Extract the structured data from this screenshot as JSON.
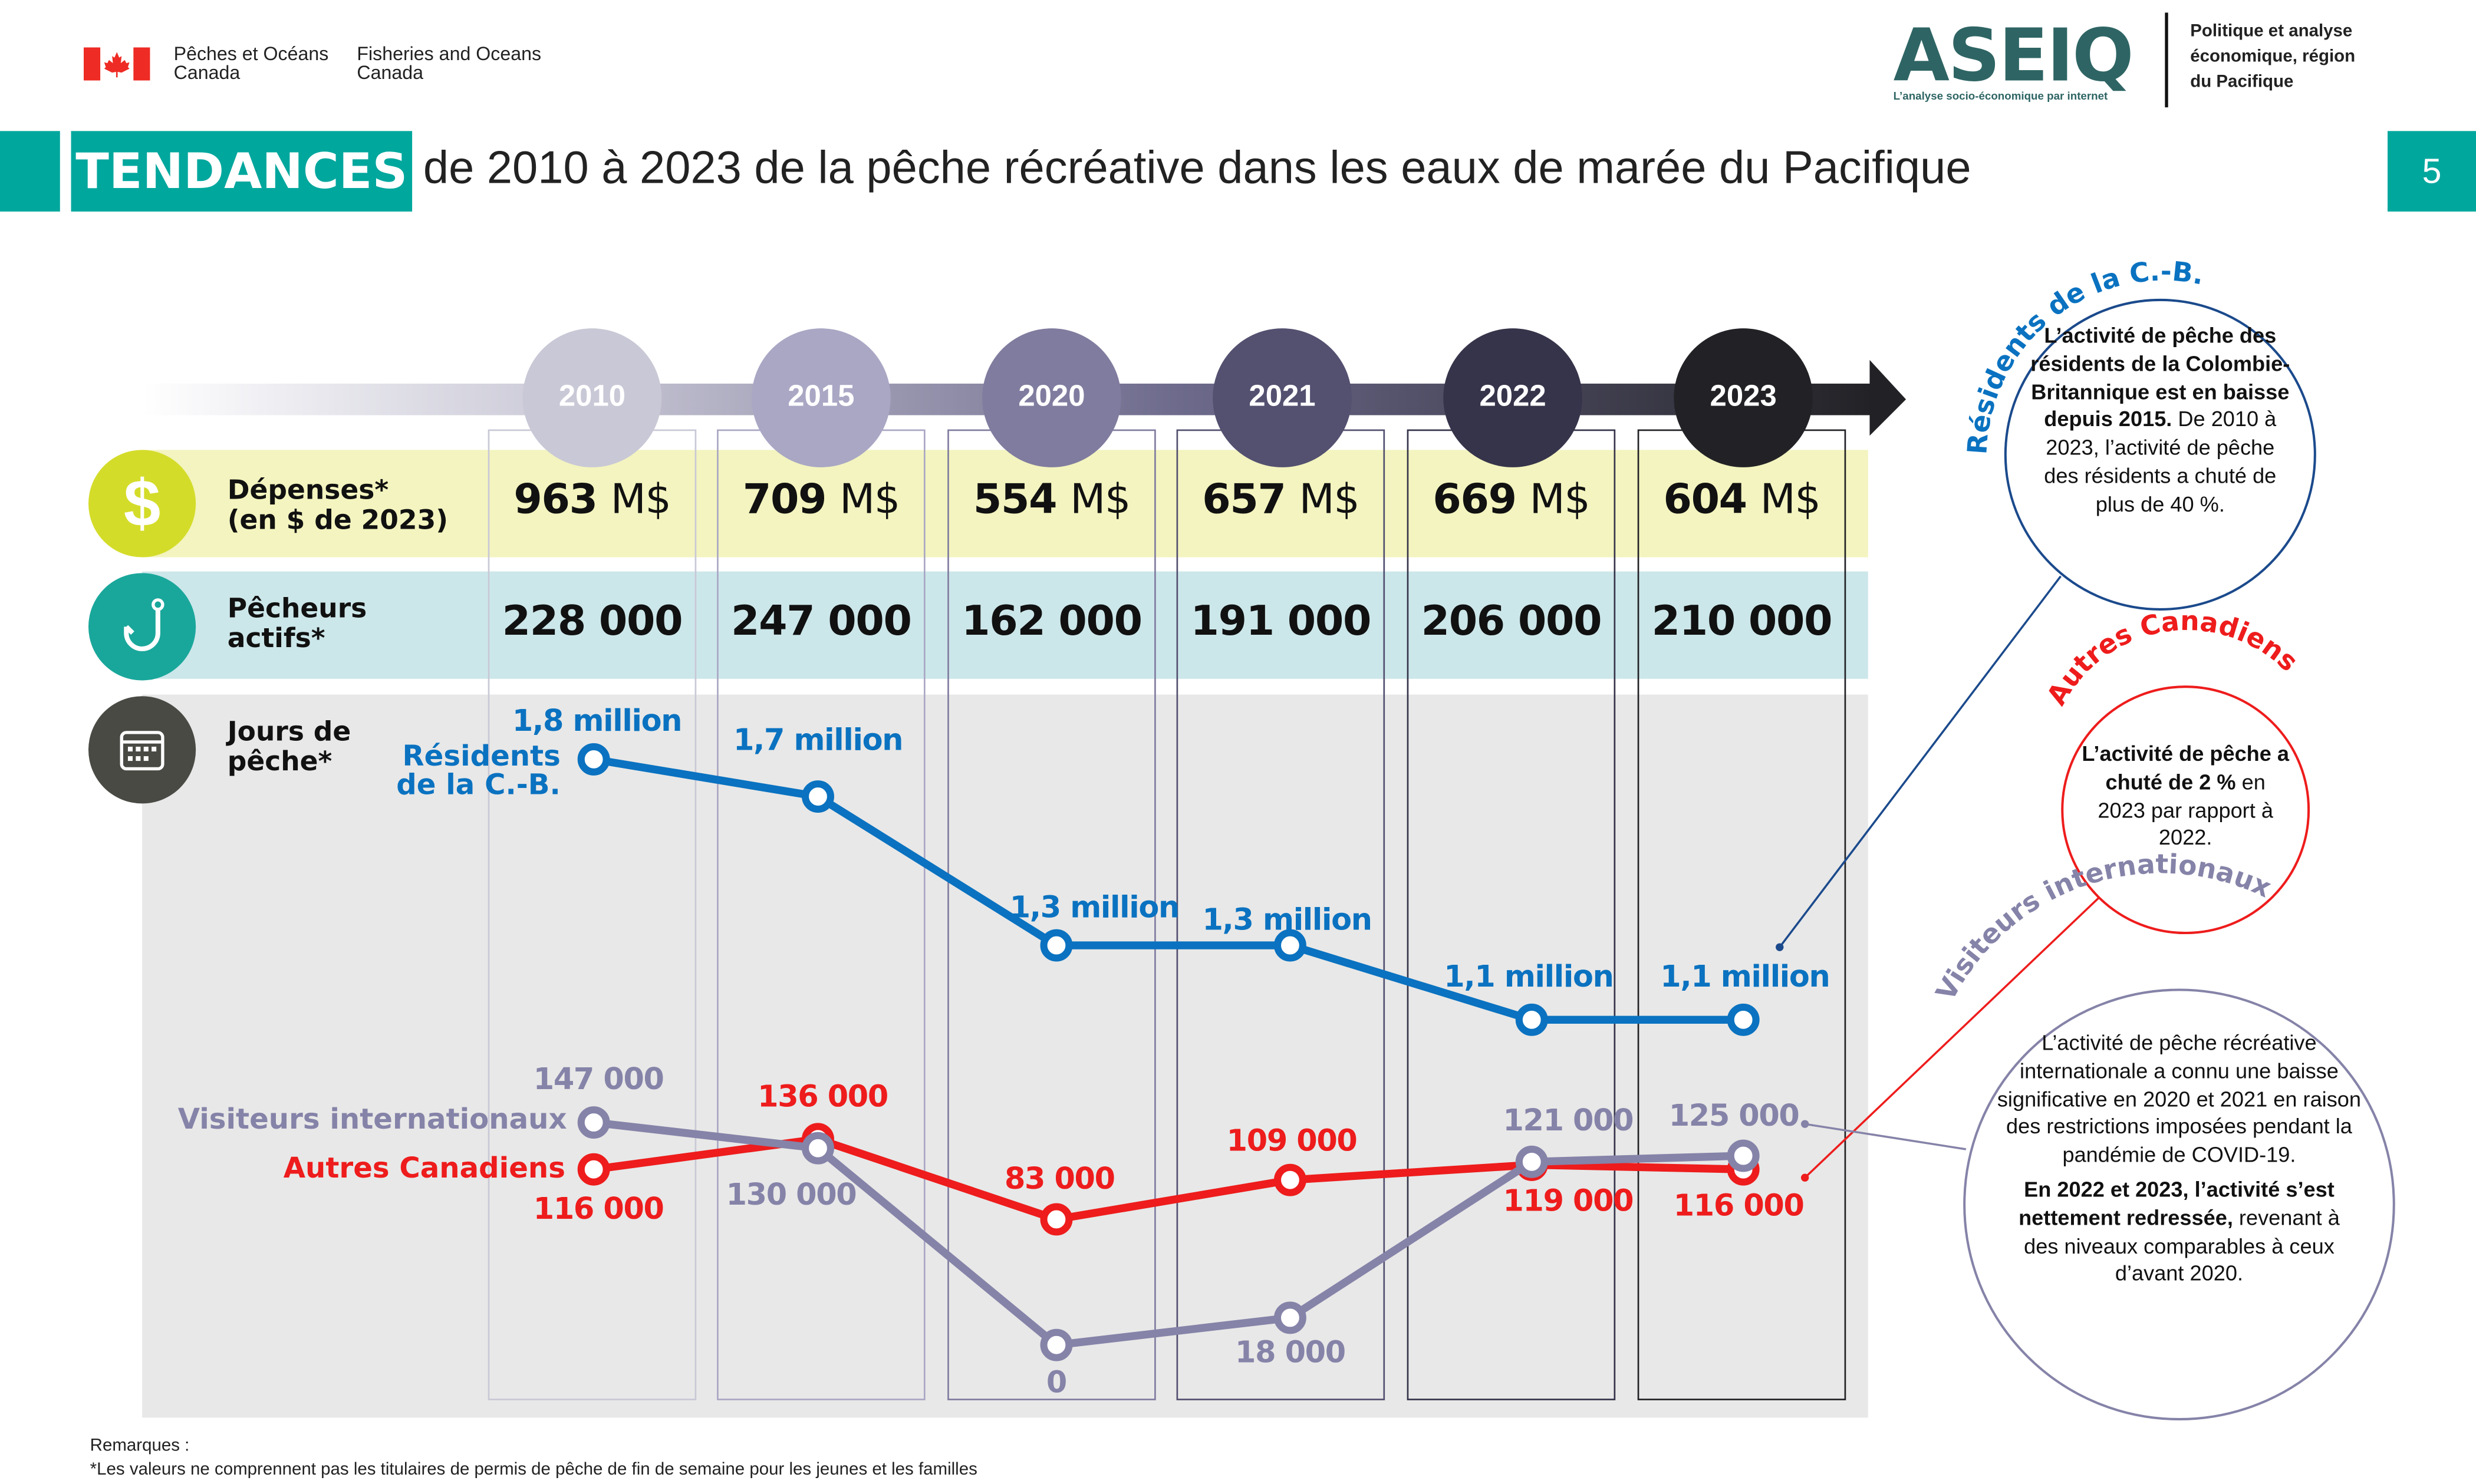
{
  "header": {
    "dept_fr_line1": "Pêches et Océans",
    "dept_fr_line2": "Canada",
    "dept_en_line1": "Fisheries and Oceans",
    "dept_en_line2": "Canada",
    "logo_text": "ASEIQ",
    "logo_tagline": "L’analyse socio-économique par internet",
    "division_line1": "Politique et analyse",
    "division_line2": "économique, région",
    "division_line3": "du Pacifique"
  },
  "title": {
    "highlight": "TENDANCES",
    "text": "de 2010 à 2023 de la pêche récréative dans les eaux de marée du Pacifique",
    "page_number": "5"
  },
  "colors": {
    "teal": "#00a79d",
    "residents": "#0a72c0",
    "canadiens": "#ee1c1c",
    "visiteurs": "#8583a8",
    "spending_band": "#f3f4bf",
    "anglers_band": "#cce7ea"
  },
  "years": [
    "2010",
    "2015",
    "2020",
    "2021",
    "2022",
    "2023"
  ],
  "rows": {
    "spending": {
      "label1": "Dépenses*",
      "label2": "(en $ de 2023)",
      "icon": "dollar-icon",
      "unit": "M$",
      "values": [
        "963",
        "709",
        "554",
        "657",
        "669",
        "604"
      ]
    },
    "anglers": {
      "label1": "Pêcheurs",
      "label2": "actifs*",
      "icon": "fishing-hook-icon",
      "values": [
        "228 000",
        "247 000",
        "162 000",
        "191 000",
        "206 000",
        "210 000"
      ]
    },
    "days": {
      "label1": "Jours de",
      "label2": "pêche*",
      "icon": "calendar-icon"
    }
  },
  "chart_data": {
    "type": "line",
    "title": "",
    "categories": [
      "2010",
      "2015",
      "2020",
      "2021",
      "2022",
      "2023"
    ],
    "series": [
      {
        "name": "Résidents de la C.-B.",
        "name_line1": "Résidents",
        "name_line2": "de la C.-B.",
        "unit": "million",
        "values": [
          1.8,
          1.7,
          1.3,
          1.3,
          1.1,
          1.1
        ],
        "labels": [
          "1,8 million",
          "1,7 million",
          "1,3 million",
          "1,3 million",
          "1,1 million",
          "1,1 million"
        ]
      },
      {
        "name": "Visiteurs internationaux",
        "values": [
          147000,
          130000,
          0,
          18000,
          121000,
          125000
        ],
        "labels": [
          "147 000",
          "130 000",
          "0",
          "18 000",
          "121 000",
          "125 000"
        ]
      },
      {
        "name": "Autres Canadiens",
        "values": [
          116000,
          136000,
          83000,
          109000,
          119000,
          116000
        ],
        "labels": [
          "116 000",
          "136 000",
          "83 000",
          "109 000",
          "119 000",
          "116 000"
        ]
      }
    ]
  },
  "callouts": {
    "residents": {
      "title": "Résidents de la C.-B.",
      "bold": "L’activité de pêche des résidents de la Colombie-Britannique est en baisse depuis 2015.",
      "rest": " De 2010 à 2023, l’activité de pêche des résidents a chuté de plus de 40 %."
    },
    "canadiens": {
      "title": "Autres Canadiens",
      "bold1": "L’activité de pêche a chuté de 2 %",
      "rest": " en 2023 par rapport à 2022."
    },
    "visiteurs": {
      "title": "Visiteurs internationaux",
      "p1": "L’activité de pêche récréative internationale a connu une baisse significative en 2020 et 2021 en raison des restrictions imposées pendant la pandémie de COVID-19.",
      "p2_bold": "En 2022 et 2023, l’activité s’est nettement redressée,",
      "p2_rest": " revenant à des niveaux comparables à ceux d’avant 2020."
    }
  },
  "footer": {
    "notes_label": "Remarques :",
    "note1": "*Les valeurs ne comprennent pas les titulaires de permis de pêche de fin de semaine pour les jeunes et les familles"
  }
}
